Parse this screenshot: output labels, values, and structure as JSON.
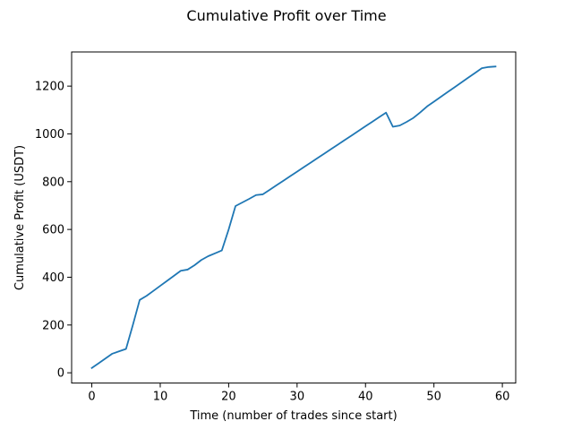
{
  "chart_data": {
    "type": "line",
    "title": "Cumulative Profit over Time",
    "xlabel": "Time (number of trades since start)",
    "ylabel": "Cumulative Profit (USDT)",
    "xlim": [
      -2.95,
      61.95
    ],
    "ylim": [
      -43,
      1343
    ],
    "xticks": [
      0,
      10,
      20,
      30,
      40,
      50,
      60
    ],
    "yticks": [
      0,
      200,
      400,
      600,
      800,
      1000,
      1200
    ],
    "grid": false,
    "legend": "none",
    "series": [
      {
        "color": "#1f77b4",
        "x": [
          0,
          1,
          2,
          3,
          4,
          5,
          6,
          7,
          8,
          9,
          10,
          11,
          12,
          13,
          14,
          15,
          16,
          17,
          18,
          19,
          20,
          21,
          22,
          23,
          24,
          25,
          26,
          27,
          28,
          29,
          30,
          31,
          32,
          33,
          34,
          35,
          36,
          37,
          38,
          39,
          40,
          41,
          42,
          43,
          44,
          45,
          46,
          47,
          48,
          49,
          50,
          51,
          52,
          53,
          54,
          55,
          56,
          57,
          58,
          59
        ],
        "y": [
          20,
          40,
          60,
          80,
          90,
          100,
          200,
          305,
          322,
          343,
          364,
          385,
          406,
          427,
          432,
          450,
          472,
          488,
          500,
          512,
          600,
          698,
          713,
          728,
          744,
          747,
          766,
          785,
          804,
          823,
          842,
          861,
          880,
          899,
          918,
          937,
          956,
          975,
          994,
          1013,
          1032,
          1051,
          1070,
          1089,
          1030,
          1035,
          1050,
          1067,
          1090,
          1115,
          1135,
          1155,
          1175,
          1195,
          1215,
          1235,
          1255,
          1275,
          1280,
          1282
        ]
      }
    ]
  }
}
